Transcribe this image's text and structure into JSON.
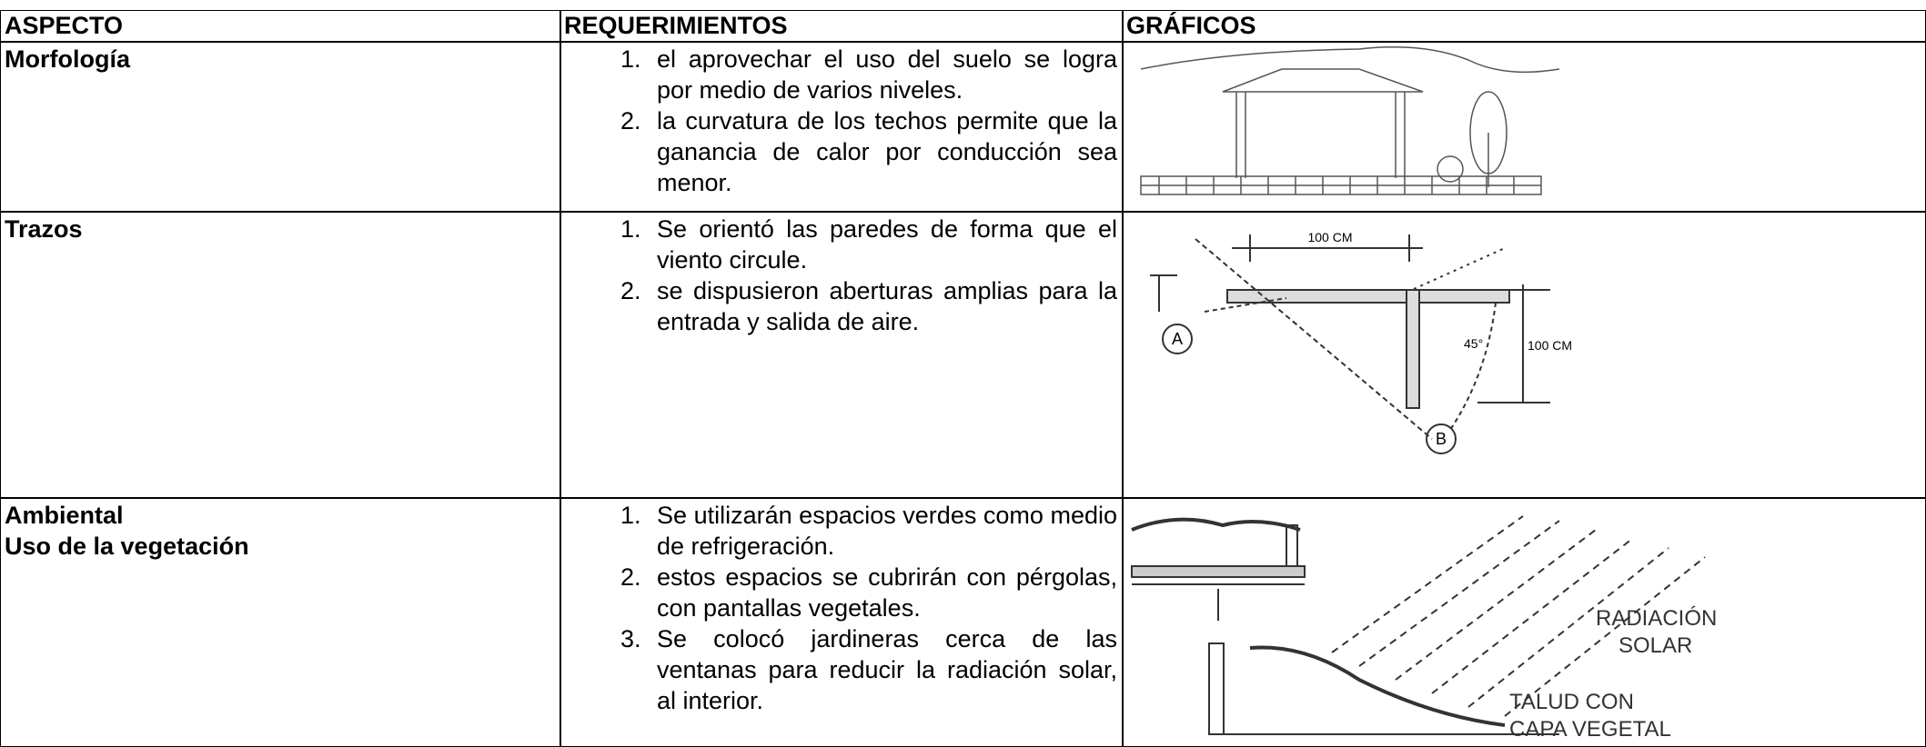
{
  "table": {
    "headers": [
      "ASPECTO",
      "REQUERIMIENTOS",
      "GRÁFICOS"
    ],
    "rows": [
      {
        "aspecto": [
          "Morfología"
        ],
        "requerimientos": [
          "el aprovechar el uso del suelo se logra por medio de varios niveles.",
          "la curvatura de los techos permite que la ganancia de calor por conducción sea menor."
        ]
      },
      {
        "aspecto": [
          "Trazos"
        ],
        "requerimientos": [
          "Se orientó las paredes de forma que el viento circule.",
          "se dispusieron aberturas amplias para la entrada y salida de aire."
        ],
        "grafico_labels": [
          "100 CM",
          "A",
          "B",
          "45°",
          "100 CM"
        ]
      },
      {
        "aspecto": [
          "Ambiental",
          "Uso de la vegetación"
        ],
        "requerimientos": [
          "Se utilizarán espacios verdes como medio de refrigeración.",
          "estos espacios se cubrirán con pérgolas, con pantallas vegetales.",
          "Se colocó jardineras cerca de las ventanas para  reducir la radiación solar, al interior."
        ],
        "grafico_labels": [
          "RADIACIÓN",
          "SOLAR",
          "TALUD CON",
          "CAPA VEGETAL"
        ]
      }
    ]
  }
}
